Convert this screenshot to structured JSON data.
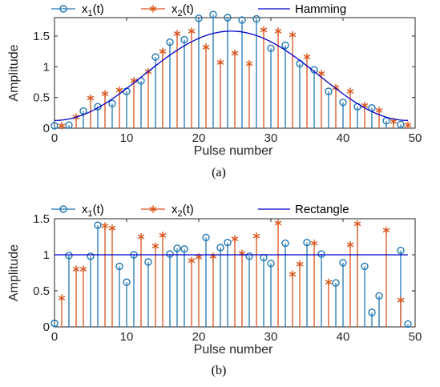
{
  "chart_data": [
    {
      "type": "stem",
      "caption": "(a)",
      "xlabel": "Pulse number",
      "ylabel": "Amplitude",
      "xlim": [
        0,
        50
      ],
      "ylim": [
        0,
        1.8
      ],
      "xticks": [
        "0",
        "10",
        "20",
        "30",
        "40",
        "50"
      ],
      "yticks": [
        "0",
        "0.5",
        "1",
        "1.5"
      ],
      "legend": {
        "position": "top",
        "orientation": "horizontal"
      },
      "series": [
        {
          "name": "x",
          "name_sub": "1",
          "name_suffix": "(t)",
          "kind": "stem",
          "marker": "circle",
          "color": "#1f77b4",
          "x": [
            0,
            2,
            4,
            6,
            8,
            10,
            12,
            14,
            16,
            18,
            20,
            22,
            24,
            26,
            28,
            30,
            32,
            34,
            36,
            38,
            40,
            42,
            44,
            46,
            48
          ],
          "y": [
            0.04,
            0.05,
            0.28,
            0.35,
            0.4,
            0.6,
            0.77,
            1.16,
            1.4,
            1.44,
            1.79,
            1.85,
            1.8,
            1.76,
            1.78,
            1.3,
            1.35,
            1.05,
            0.95,
            0.6,
            0.42,
            0.35,
            0.33,
            0.12,
            0.06
          ]
        },
        {
          "name": "x",
          "name_sub": "2",
          "name_suffix": "(t)",
          "kind": "stem",
          "marker": "asterisk",
          "color": "#d95319",
          "x": [
            1,
            3,
            5,
            7,
            9,
            11,
            13,
            15,
            17,
            19,
            21,
            23,
            25,
            27,
            29,
            31,
            33,
            35,
            37,
            39,
            41,
            43,
            45,
            47,
            49
          ],
          "y": [
            0.04,
            0.18,
            0.49,
            0.56,
            0.62,
            0.77,
            0.92,
            1.25,
            1.54,
            1.58,
            1.32,
            1.07,
            1.22,
            1.05,
            1.6,
            1.58,
            1.52,
            1.16,
            0.89,
            0.66,
            0.6,
            0.37,
            0.29,
            0.11,
            0.05
          ]
        },
        {
          "name": "Hamming",
          "kind": "line",
          "color": "#0000cd",
          "window": "hamming",
          "N": 50,
          "peak": 1.58
        }
      ]
    },
    {
      "type": "stem",
      "caption": "(b)",
      "xlabel": "Pulse number",
      "ylabel": "Amplitude",
      "xlim": [
        0,
        50
      ],
      "ylim": [
        0,
        1.5
      ],
      "xticks": [
        "0",
        "10",
        "20",
        "30",
        "40",
        "50"
      ],
      "yticks": [
        "0",
        "0.5",
        "1",
        "1.5"
      ],
      "legend": {
        "position": "top",
        "orientation": "horizontal"
      },
      "series": [
        {
          "name": "x",
          "name_sub": "1",
          "name_suffix": "(t)",
          "kind": "stem",
          "marker": "circle",
          "color": "#1f77b4",
          "x": [
            0,
            2,
            5,
            6,
            9,
            10,
            11,
            13,
            16,
            17,
            18,
            21,
            23,
            24,
            27,
            29,
            30,
            32,
            35,
            37,
            39,
            40,
            43,
            44,
            45,
            48,
            49
          ],
          "y": [
            0.05,
            0.99,
            0.98,
            1.41,
            0.84,
            0.62,
            1.0,
            0.9,
            1.01,
            1.09,
            1.08,
            1.24,
            1.1,
            1.17,
            0.98,
            0.96,
            0.88,
            1.16,
            1.17,
            1.01,
            0.61,
            0.89,
            0.84,
            0.2,
            0.43,
            1.06,
            0.04
          ]
        },
        {
          "name": "x",
          "name_sub": "2",
          "name_suffix": "(t)",
          "kind": "stem",
          "marker": "asterisk",
          "color": "#d95319",
          "x": [
            1,
            3,
            4,
            7,
            8,
            12,
            14,
            15,
            19,
            20,
            22,
            25,
            26,
            28,
            31,
            33,
            34,
            36,
            38,
            41,
            42,
            46,
            48
          ],
          "y": [
            0.4,
            0.8,
            0.8,
            1.4,
            1.37,
            1.25,
            1.12,
            1.27,
            0.92,
            0.97,
            0.98,
            1.22,
            1.02,
            1.26,
            1.44,
            0.73,
            0.87,
            1.16,
            0.62,
            1.14,
            1.43,
            1.34,
            0.37
          ]
        },
        {
          "name": "Rectangle",
          "kind": "line",
          "color": "#0000cd",
          "x": [
            0,
            49
          ],
          "y": [
            1.0,
            1.0
          ]
        }
      ]
    }
  ]
}
